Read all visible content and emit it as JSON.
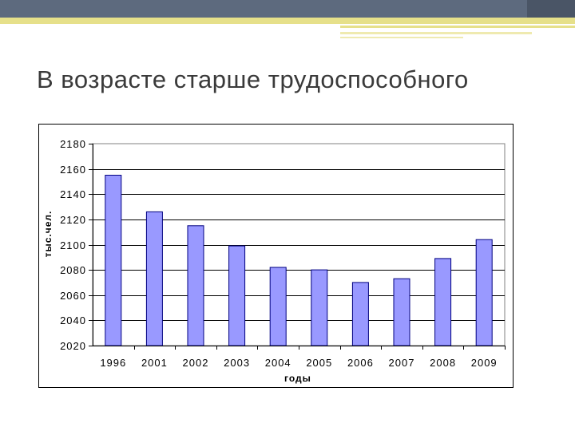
{
  "slide": {
    "title": "В возрасте старше трудоспособного",
    "colors": {
      "header_band": "#5d6a7e",
      "header_stripe": "#e6e08a",
      "title_text": "#3a3a3a"
    }
  },
  "chart_data": {
    "type": "bar",
    "title": "",
    "xlabel": "годы",
    "ylabel": "тыс.чел.",
    "categories": [
      "1996",
      "2001",
      "2002",
      "2003",
      "2004",
      "2005",
      "2006",
      "2007",
      "2008",
      "2009"
    ],
    "values": [
      2155,
      2126,
      2115,
      2099,
      2082,
      2080,
      2070,
      2073,
      2089,
      2104
    ],
    "ylim": [
      2020,
      2180
    ],
    "yticks": [
      "2020",
      "2040",
      "2060",
      "2080",
      "2100",
      "2120",
      "2140",
      "2160",
      "2180"
    ],
    "grid": true,
    "bar_color": "#9999ff",
    "bar_edge_color": "#000080"
  }
}
